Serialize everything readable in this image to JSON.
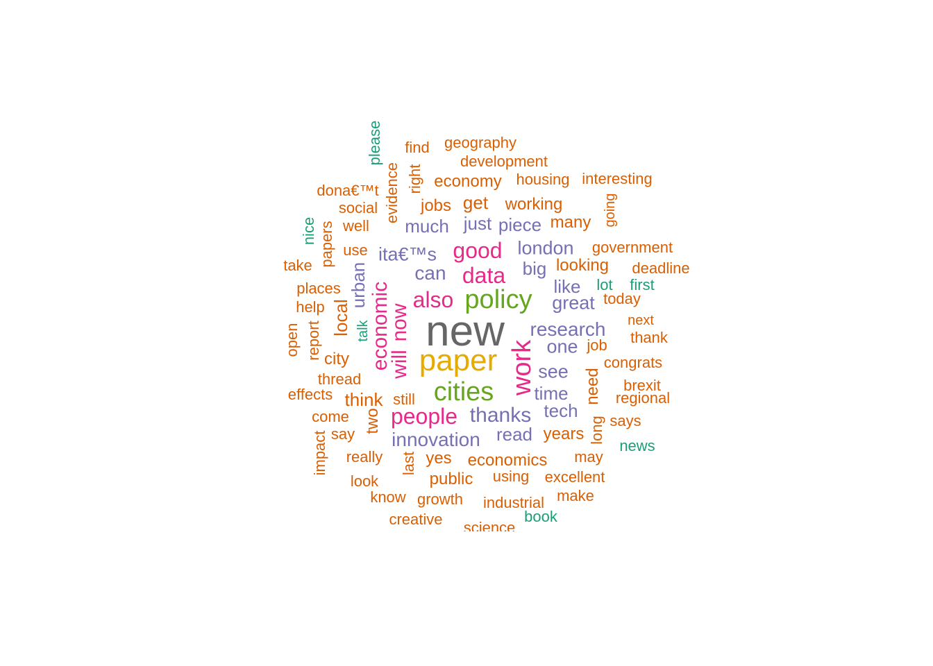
{
  "colors": {
    "c1": "#1b9e77",
    "c2": "#d95f02",
    "c3": "#7570b3",
    "c4": "#e7298a",
    "c5": "#66a61e",
    "c6": "#e6ab02",
    "c7": "#666666"
  },
  "words": [
    {
      "text": "new",
      "color": "c7"
    },
    {
      "text": "paper",
      "color": "c6"
    },
    {
      "text": "policy",
      "color": "c5"
    },
    {
      "text": "cities",
      "color": "c5"
    },
    {
      "text": "work",
      "color": "c4"
    },
    {
      "text": "will",
      "color": "c4"
    },
    {
      "text": "now",
      "color": "c4"
    },
    {
      "text": "economic",
      "color": "c4"
    },
    {
      "text": "also",
      "color": "c4"
    },
    {
      "text": "data",
      "color": "c4"
    },
    {
      "text": "good",
      "color": "c4"
    },
    {
      "text": "people",
      "color": "c4"
    },
    {
      "text": "thanks",
      "color": "c3"
    },
    {
      "text": "innovation",
      "color": "c3"
    },
    {
      "text": "research",
      "color": "c3"
    },
    {
      "text": "can",
      "color": "c3"
    },
    {
      "text": "ita€™s",
      "color": "c3"
    },
    {
      "text": "london",
      "color": "c3"
    },
    {
      "text": "great",
      "color": "c3"
    },
    {
      "text": "see",
      "color": "c3"
    },
    {
      "text": "one",
      "color": "c3"
    },
    {
      "text": "just",
      "color": "c3"
    },
    {
      "text": "piece",
      "color": "c3"
    },
    {
      "text": "much",
      "color": "c3"
    },
    {
      "text": "big",
      "color": "c3"
    },
    {
      "text": "like",
      "color": "c3"
    },
    {
      "text": "time",
      "color": "c3"
    },
    {
      "text": "tech",
      "color": "c3"
    },
    {
      "text": "read",
      "color": "c3"
    },
    {
      "text": "urban",
      "color": "c3"
    },
    {
      "text": "geography",
      "color": "c2"
    },
    {
      "text": "find",
      "color": "c2"
    },
    {
      "text": "development",
      "color": "c2"
    },
    {
      "text": "economy",
      "color": "c2"
    },
    {
      "text": "housing",
      "color": "c2"
    },
    {
      "text": "interesting",
      "color": "c2"
    },
    {
      "text": "dona€™t",
      "color": "c2"
    },
    {
      "text": "social",
      "color": "c2"
    },
    {
      "text": "jobs",
      "color": "c2"
    },
    {
      "text": "get",
      "color": "c2"
    },
    {
      "text": "working",
      "color": "c2"
    },
    {
      "text": "well",
      "color": "c2"
    },
    {
      "text": "many",
      "color": "c2"
    },
    {
      "text": "government",
      "color": "c2"
    },
    {
      "text": "use",
      "color": "c2"
    },
    {
      "text": "take",
      "color": "c2"
    },
    {
      "text": "looking",
      "color": "c2"
    },
    {
      "text": "deadline",
      "color": "c2"
    },
    {
      "text": "places",
      "color": "c2"
    },
    {
      "text": "help",
      "color": "c2"
    },
    {
      "text": "today",
      "color": "c2"
    },
    {
      "text": "next",
      "color": "c2"
    },
    {
      "text": "thank",
      "color": "c2"
    },
    {
      "text": "job",
      "color": "c2"
    },
    {
      "text": "city",
      "color": "c2"
    },
    {
      "text": "congrats",
      "color": "c2"
    },
    {
      "text": "thread",
      "color": "c2"
    },
    {
      "text": "brexit",
      "color": "c2"
    },
    {
      "text": "regional",
      "color": "c2"
    },
    {
      "text": "effects",
      "color": "c2"
    },
    {
      "text": "think",
      "color": "c2"
    },
    {
      "text": "still",
      "color": "c2"
    },
    {
      "text": "come",
      "color": "c2"
    },
    {
      "text": "says",
      "color": "c2"
    },
    {
      "text": "say",
      "color": "c2"
    },
    {
      "text": "years",
      "color": "c2"
    },
    {
      "text": "really",
      "color": "c2"
    },
    {
      "text": "yes",
      "color": "c2"
    },
    {
      "text": "economics",
      "color": "c2"
    },
    {
      "text": "may",
      "color": "c2"
    },
    {
      "text": "look",
      "color": "c2"
    },
    {
      "text": "public",
      "color": "c2"
    },
    {
      "text": "using",
      "color": "c2"
    },
    {
      "text": "excellent",
      "color": "c2"
    },
    {
      "text": "know",
      "color": "c2"
    },
    {
      "text": "growth",
      "color": "c2"
    },
    {
      "text": "industrial",
      "color": "c2"
    },
    {
      "text": "make",
      "color": "c2"
    },
    {
      "text": "creative",
      "color": "c2"
    },
    {
      "text": "science",
      "color": "c2"
    },
    {
      "text": "evidence",
      "color": "c2"
    },
    {
      "text": "right",
      "color": "c2"
    },
    {
      "text": "going",
      "color": "c2"
    },
    {
      "text": "papers",
      "color": "c2"
    },
    {
      "text": "local",
      "color": "c2"
    },
    {
      "text": "open",
      "color": "c2"
    },
    {
      "text": "report",
      "color": "c2"
    },
    {
      "text": "need",
      "color": "c2"
    },
    {
      "text": "two",
      "color": "c2"
    },
    {
      "text": "long",
      "color": "c2"
    },
    {
      "text": "impact",
      "color": "c2"
    },
    {
      "text": "last",
      "color": "c2"
    },
    {
      "text": "please",
      "color": "c1"
    },
    {
      "text": "nice",
      "color": "c1"
    },
    {
      "text": "lot",
      "color": "c1"
    },
    {
      "text": "first",
      "color": "c1"
    },
    {
      "text": "talk",
      "color": "c1"
    },
    {
      "text": "news",
      "color": "c1"
    },
    {
      "text": "book",
      "color": "c1"
    }
  ]
}
